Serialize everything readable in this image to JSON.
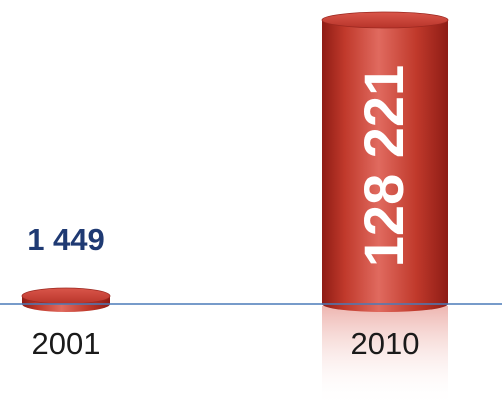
{
  "chart_data": {
    "type": "bar",
    "style": "3d-cylinder",
    "categories": [
      "2001",
      "2010"
    ],
    "values": [
      1449,
      128221
    ],
    "data_labels": [
      "1 449",
      "128 221"
    ],
    "title": "",
    "xlabel": "",
    "ylabel": "",
    "ylim": [
      0,
      128221
    ],
    "grid": false,
    "legend": "none",
    "colors": {
      "bar_main": "#c0392b",
      "bar_light": "#e06a5f",
      "bar_dark": "#8e1c15",
      "baseline": "#4a7ab8",
      "value_label_small": "#1f3a73",
      "value_label_large": "#ffffff"
    }
  }
}
